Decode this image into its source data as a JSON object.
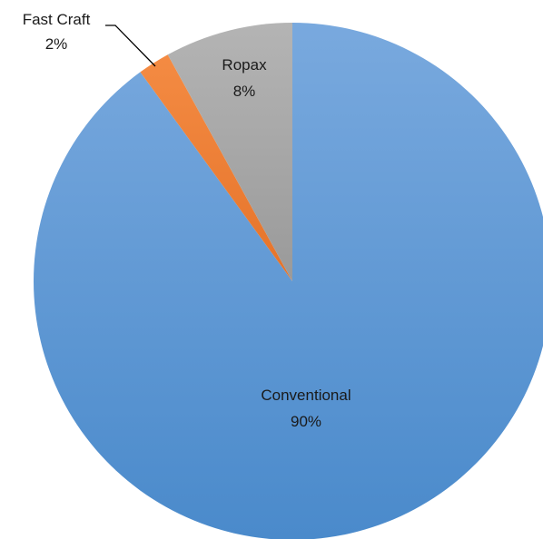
{
  "chart_data": {
    "type": "pie",
    "title": "",
    "slices": [
      {
        "label": "Conventional",
        "value": 90,
        "value_label": "90%",
        "color": "#5B9BD5"
      },
      {
        "label": "Fast Craft",
        "value": 2,
        "value_label": "2%",
        "color": "#ED7D31"
      },
      {
        "label": "Ropax",
        "value": 8,
        "value_label": "8%",
        "color": "#A5A5A5"
      }
    ],
    "start_angle_deg": 0,
    "direction": "clockwise",
    "legend": "none",
    "label_style": "category-and-percent"
  }
}
